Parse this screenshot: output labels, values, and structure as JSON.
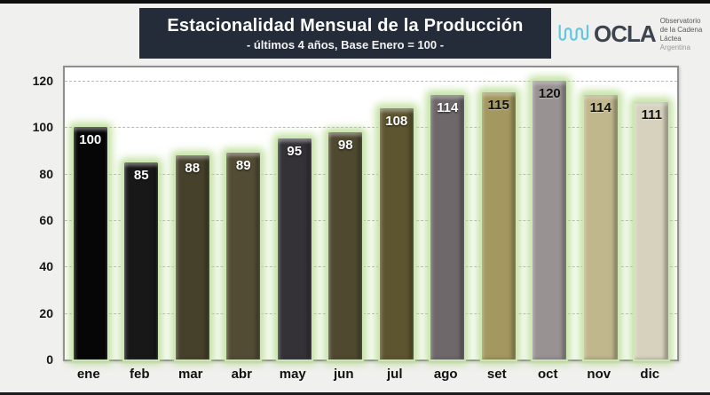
{
  "header": {
    "title": "Estacionalidad Mensual de la Producción",
    "subtitle": "- últimos 4 años, Base Enero = 100 -",
    "title_bg": "#242c39"
  },
  "logo": {
    "name": "OCLA",
    "org_line1": "Observatorio",
    "org_line2": "de la Cadena Láctea",
    "org_line3": "Argentina",
    "wave_color": "#5fc6e4",
    "text_color": "#3e444d"
  },
  "chart_data": {
    "type": "bar",
    "title": "Estacionalidad Mensual de la Producción",
    "subtitle": "- últimos 4 años, Base Enero = 100 -",
    "categories": [
      "ene",
      "feb",
      "mar",
      "abr",
      "may",
      "jun",
      "jul",
      "ago",
      "set",
      "oct",
      "nov",
      "dic"
    ],
    "values": [
      100,
      85,
      88,
      89,
      95,
      98,
      108,
      114,
      115,
      120,
      114,
      111
    ],
    "bar_colors": [
      "#060606",
      "#181818",
      "#46412b",
      "#524c34",
      "#343237",
      "#4f4930",
      "#5d552f",
      "#6e686b",
      "#a3985f",
      "#989293",
      "#c0b78c",
      "#d6d2bd"
    ],
    "label_colors": [
      "white",
      "white",
      "white",
      "white",
      "white",
      "white",
      "white",
      "white",
      "black",
      "black",
      "black",
      "black"
    ],
    "bar_outline_glow": "#bfe2a0",
    "xlabel": "",
    "ylabel": "",
    "ylim": [
      0,
      126
    ],
    "yticks": [
      0,
      20,
      40,
      60,
      80,
      100,
      120
    ],
    "grid": "horizontal-dashed",
    "legend": "none",
    "plot_bg": "#ffffff"
  }
}
